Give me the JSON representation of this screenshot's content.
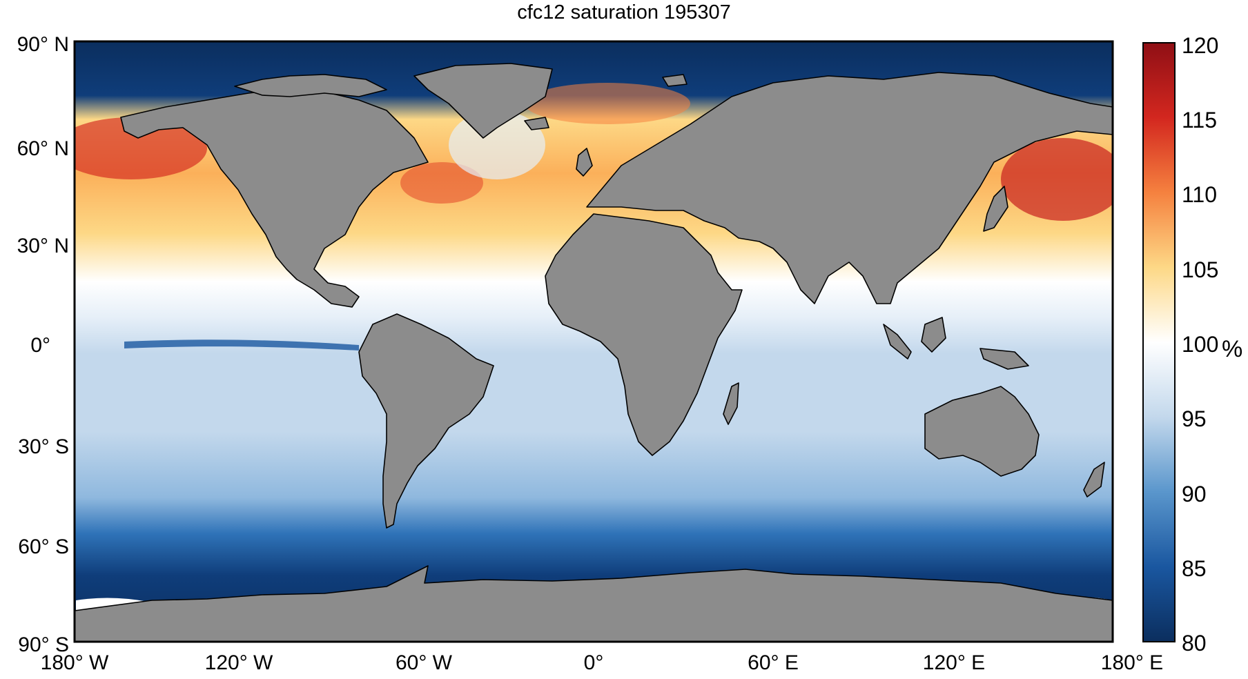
{
  "title": "cfc12 saturation 195307",
  "y_ticks": [
    "90° N",
    "60° N",
    "30° N",
    "0°",
    "30° S",
    "60° S",
    "90° S"
  ],
  "x_ticks": [
    "180° W",
    "120° W",
    "60° W",
    "0°",
    "60° E",
    "120° E",
    "180° E"
  ],
  "colorbar": {
    "ticks": [
      "120",
      "115",
      "110",
      "105",
      "100",
      "95",
      "90",
      "85",
      "80"
    ],
    "unit": "%",
    "range": [
      80,
      120
    ],
    "colors": [
      "#0b2e5e",
      "#0f3d7a",
      "#1a57a0",
      "#2f73b8",
      "#5a96cc",
      "#8fb8de",
      "#c3d8ec",
      "#e6eff8",
      "#ffffff",
      "#fff3bf",
      "#fdd886",
      "#fbb05a",
      "#f5813f",
      "#e4502e",
      "#c7211f",
      "#8f0f15"
    ]
  },
  "map": {
    "projection": "equirectangular",
    "lon_range": [
      -180,
      180
    ],
    "lat_range": [
      -90,
      90
    ],
    "land_color": "#8c8c8c",
    "variable": "cfc12 saturation"
  }
}
